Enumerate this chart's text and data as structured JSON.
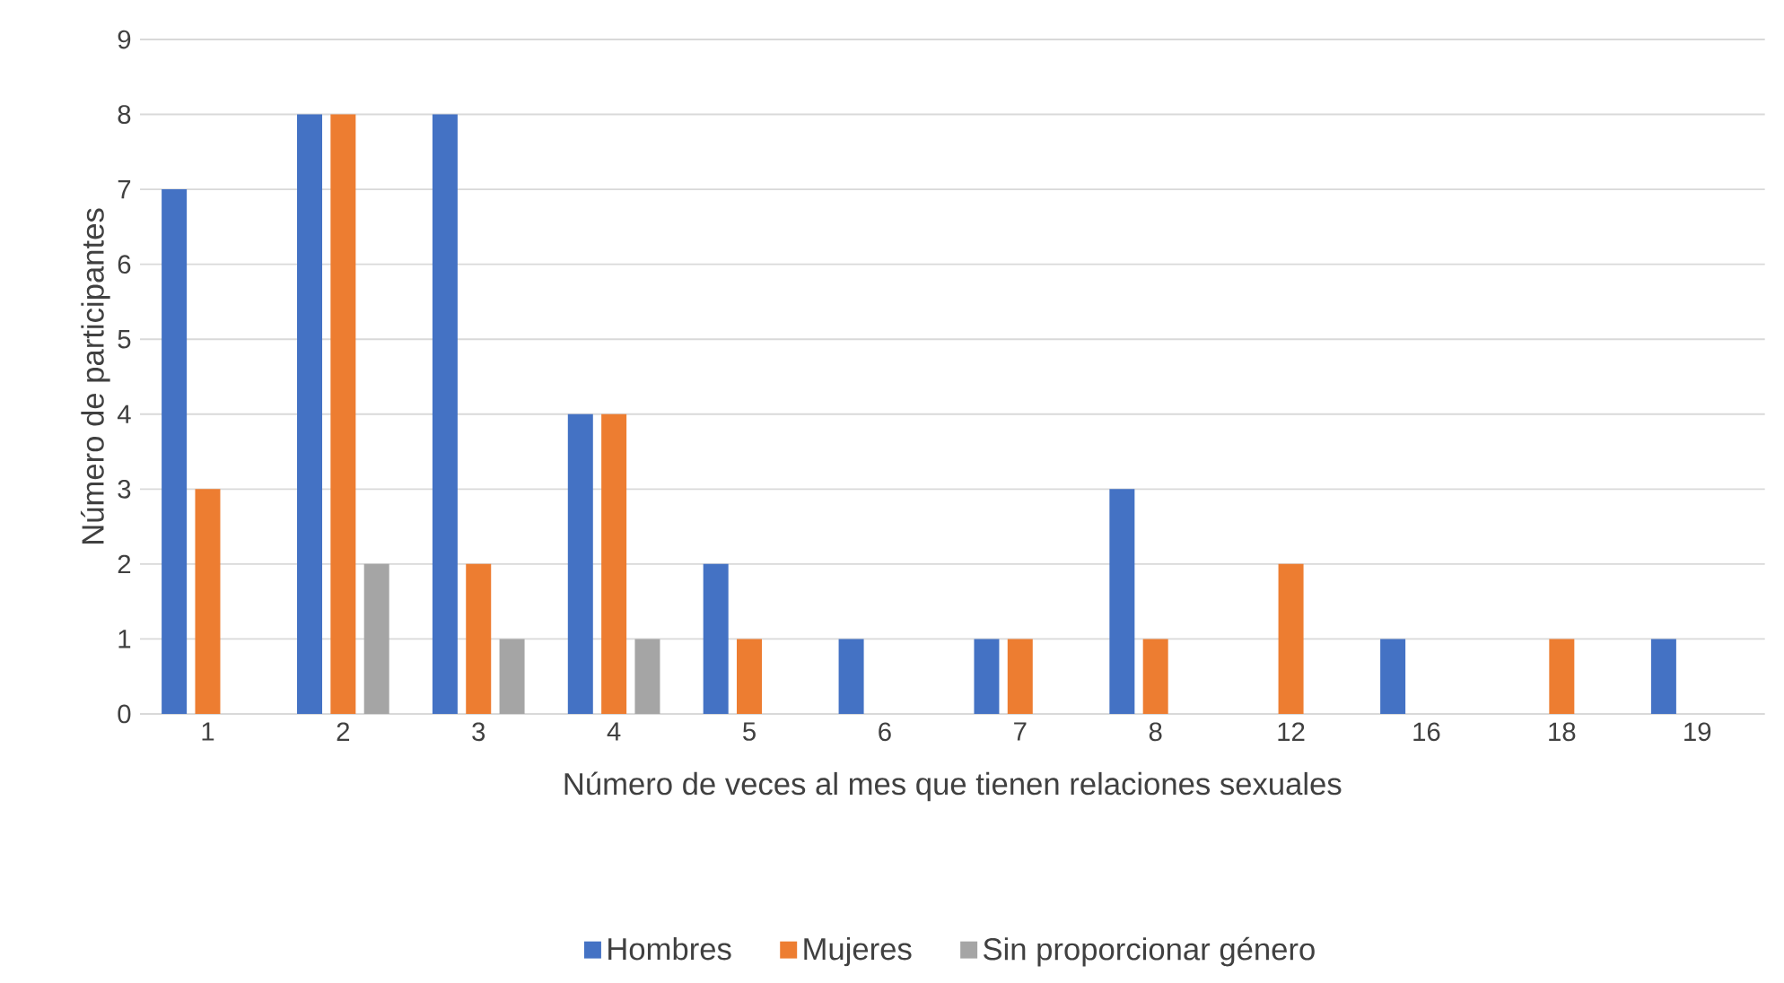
{
  "chart_data": {
    "type": "bar",
    "categories": [
      "1",
      "2",
      "3",
      "4",
      "5",
      "6",
      "7",
      "8",
      "12",
      "16",
      "18",
      "19"
    ],
    "series": [
      {
        "name": "Hombres",
        "color": "#4472c4",
        "values": [
          7,
          8,
          8,
          4,
          2,
          1,
          1,
          3,
          0,
          1,
          0,
          1
        ]
      },
      {
        "name": "Mujeres",
        "color": "#ed7d31",
        "values": [
          3,
          8,
          2,
          4,
          1,
          0,
          1,
          1,
          2,
          0,
          1,
          0
        ]
      },
      {
        "name": "Sin proporcionar género",
        "color": "#a5a5a5",
        "values": [
          0,
          2,
          1,
          1,
          0,
          0,
          0,
          0,
          0,
          0,
          0,
          0
        ]
      }
    ],
    "xlabel": "Número de veces al mes que tienen relaciones sexuales",
    "ylabel": "Número de participantes",
    "ylim": [
      0,
      9
    ],
    "yticks": [
      0,
      1,
      2,
      3,
      4,
      5,
      6,
      7,
      8,
      9
    ],
    "grid": "y",
    "legend": "bottom"
  }
}
